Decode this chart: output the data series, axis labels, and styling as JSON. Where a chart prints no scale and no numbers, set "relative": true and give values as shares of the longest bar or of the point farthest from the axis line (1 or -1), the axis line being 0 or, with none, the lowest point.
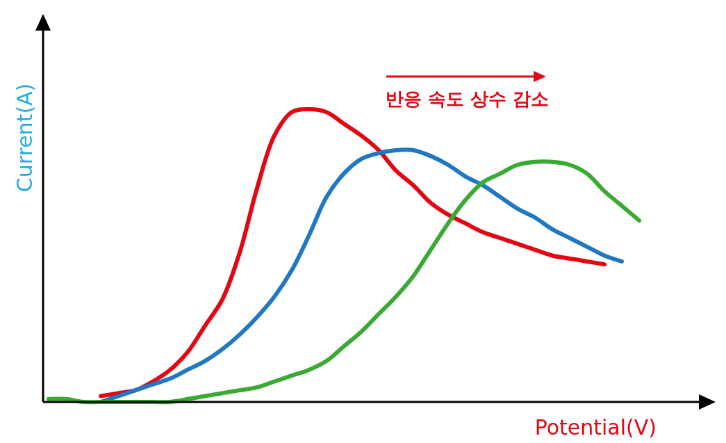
{
  "chart_data": {
    "type": "line",
    "relative": true,
    "xlabel": "Potential(V)",
    "ylabel": "Current(A)",
    "annotations": [
      "반응 속도 상수 감소"
    ],
    "categories": [
      null,
      null,
      null,
      null,
      null,
      null,
      null,
      null,
      null,
      null,
      null,
      null,
      null,
      null,
      null,
      null,
      null,
      null,
      null,
      null,
      null,
      null,
      null,
      null,
      null,
      null,
      null,
      null,
      null,
      null,
      null,
      null,
      null,
      null,
      null
    ],
    "grid": false,
    "marker": "none",
    "line_style": "solid",
    "series": [
      {
        "color": "#e30613",
        "values": [
          null,
          null,
          null,
          0.02,
          0.03,
          0.04,
          0.07,
          0.11,
          0.17,
          0.26,
          0.35,
          0.51,
          0.73,
          0.91,
          0.99,
          1.0,
          0.99,
          0.95,
          0.91,
          0.86,
          0.79,
          0.74,
          0.68,
          0.64,
          0.61,
          0.58,
          0.56,
          0.54,
          0.52,
          0.5,
          0.49,
          0.48,
          0.47,
          null,
          null
        ]
      },
      {
        "color": "#1f78c1",
        "values": [
          null,
          null,
          null,
          0.0,
          0.02,
          0.04,
          0.06,
          0.08,
          0.11,
          0.14,
          0.18,
          0.23,
          0.29,
          0.36,
          0.45,
          0.57,
          0.7,
          0.78,
          0.83,
          0.85,
          0.86,
          0.86,
          0.84,
          0.81,
          0.77,
          0.74,
          0.7,
          0.66,
          0.63,
          0.59,
          0.56,
          0.53,
          0.5,
          0.48,
          null
        ]
      },
      {
        "color": "#3aaa35",
        "values": [
          0.01,
          0.01,
          0.0,
          0.0,
          0.0,
          0.0,
          0.0,
          0.0,
          0.01,
          0.02,
          0.03,
          0.04,
          0.05,
          0.07,
          0.09,
          0.11,
          0.14,
          0.19,
          0.24,
          0.3,
          0.36,
          0.43,
          0.52,
          0.61,
          0.69,
          0.75,
          0.78,
          0.81,
          0.82,
          0.82,
          0.81,
          0.78,
          0.72,
          0.67,
          0.62
        ]
      }
    ]
  }
}
